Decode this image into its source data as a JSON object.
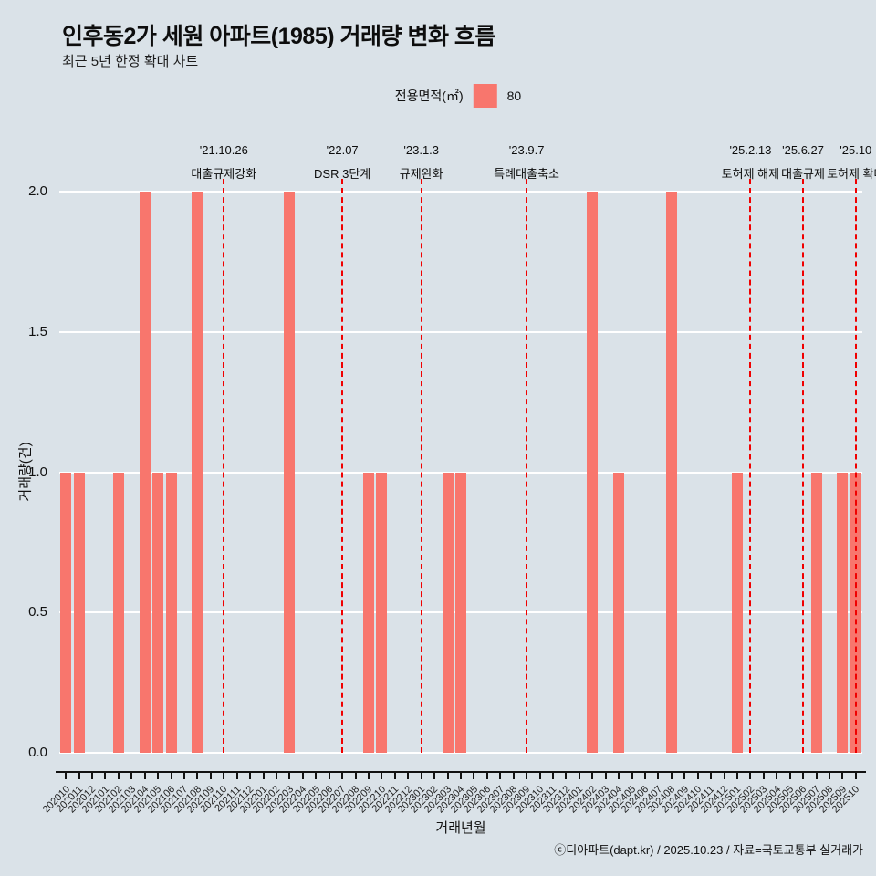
{
  "header": {
    "title": "인후동2가 세원 아파트(1985) 거래량 변화 흐름",
    "subtitle": "최근 5년 한정 확대 차트"
  },
  "legend": {
    "label": "전용면적(㎡)",
    "value": "80",
    "swatch_color": "#f8766d"
  },
  "footer": {
    "credit": "ⓒ디아파트(dapt.kr) / 2025.10.23 / 자료=국토교통부 실거래가"
  },
  "chart_data": {
    "type": "bar",
    "title": "인후동2가 세원 아파트(1985) 거래량 변화 흐름",
    "subtitle": "최근 5년 한정 확대 차트",
    "xlabel": "거래년월",
    "ylabel": "거래량(건)",
    "ylim": [
      0,
      2
    ],
    "yticks": [
      "0.0",
      "0.5",
      "1.0",
      "1.5",
      "2.0"
    ],
    "grid": true,
    "legend_position": "top-center",
    "bar_color": "#f8766d",
    "annotation_color": "#f00000",
    "background": "#dae2e8",
    "grid_color": "#ffffff",
    "axis_color": "#111111",
    "series_name": "80",
    "categories": [
      "202010",
      "202011",
      "202012",
      "202101",
      "202102",
      "202103",
      "202104",
      "202105",
      "202106",
      "202107",
      "202108",
      "202109",
      "202110",
      "202111",
      "202112",
      "202201",
      "202202",
      "202203",
      "202204",
      "202205",
      "202206",
      "202207",
      "202208",
      "202209",
      "202210",
      "202211",
      "202212",
      "202301",
      "202302",
      "202303",
      "202304",
      "202305",
      "202306",
      "202307",
      "202308",
      "202309",
      "202310",
      "202311",
      "202312",
      "202401",
      "202402",
      "202403",
      "202404",
      "202405",
      "202406",
      "202407",
      "202408",
      "202409",
      "202410",
      "202411",
      "202412",
      "202501",
      "202502",
      "202503",
      "202504",
      "202505",
      "202506",
      "202507",
      "202508",
      "202509",
      "202510"
    ],
    "values": [
      1,
      1,
      0,
      0,
      1,
      0,
      2,
      1,
      1,
      0,
      2,
      0,
      0,
      0,
      0,
      0,
      0,
      2,
      0,
      0,
      0,
      0,
      0,
      1,
      1,
      0,
      0,
      0,
      0,
      1,
      1,
      0,
      0,
      0,
      0,
      0,
      0,
      0,
      0,
      0,
      2,
      0,
      1,
      0,
      0,
      0,
      2,
      0,
      0,
      0,
      0,
      1,
      0,
      0,
      0,
      0,
      0,
      1,
      0,
      1,
      1
    ],
    "annotations": [
      {
        "month": "202110",
        "date": "'21.10.26",
        "label": "대출규제강화"
      },
      {
        "month": "202207",
        "date": "'22.07",
        "label": "DSR 3단계"
      },
      {
        "month": "202301",
        "date": "'23.1.3",
        "label": "규제완화"
      },
      {
        "month": "202309",
        "date": "'23.9.7",
        "label": "특례대출축소"
      },
      {
        "month": "202502",
        "date": "'25.2.13",
        "label": "토허제 해제"
      },
      {
        "month": "202506",
        "date": "'25.6.27",
        "label": "대출규제"
      },
      {
        "month": "202510",
        "date": "'25.10",
        "label": "토허제 확대"
      }
    ]
  }
}
